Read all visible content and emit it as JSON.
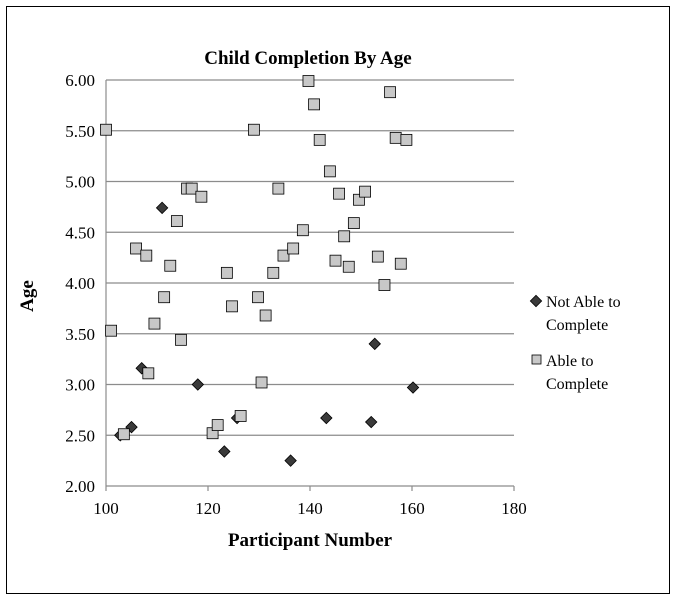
{
  "chart_data": {
    "type": "scatter",
    "title": "Child Completion By Age",
    "xlabel": "Participant Number",
    "ylabel": "Age",
    "xlim": [
      100,
      180
    ],
    "ylim": [
      2.0,
      6.0
    ],
    "xticks": [
      "100",
      "120",
      "140",
      "160",
      "180"
    ],
    "yticks": [
      "2.00",
      "2.50",
      "3.00",
      "3.50",
      "4.00",
      "4.50",
      "5.00",
      "5.50",
      "6.00"
    ],
    "grid": "horizontal",
    "legend_placement": "right",
    "series": [
      {
        "name": "Not Able to Complete",
        "name_lines": [
          "Not Able to",
          "Complete"
        ],
        "marker": "diamond",
        "color": "#3a3a3a",
        "points": [
          [
            102.8,
            2.5
          ],
          [
            105.0,
            2.58
          ],
          [
            107.0,
            3.16
          ],
          [
            111.0,
            4.74
          ],
          [
            118.0,
            3.0
          ],
          [
            123.2,
            2.34
          ],
          [
            125.7,
            2.67
          ],
          [
            136.2,
            2.25
          ],
          [
            143.2,
            2.67
          ],
          [
            152.0,
            2.63
          ],
          [
            152.7,
            3.4
          ],
          [
            160.2,
            2.97
          ]
        ]
      },
      {
        "name": "Able to Complete",
        "name_lines": [
          "Able to",
          "Complete"
        ],
        "marker": "square",
        "color": "#c8c8c8",
        "points": [
          [
            100.0,
            5.51
          ],
          [
            101.0,
            3.53
          ],
          [
            103.5,
            2.51
          ],
          [
            105.9,
            4.34
          ],
          [
            107.9,
            4.27
          ],
          [
            108.3,
            3.11
          ],
          [
            109.5,
            3.6
          ],
          [
            111.4,
            3.86
          ],
          [
            112.6,
            4.17
          ],
          [
            113.9,
            4.61
          ],
          [
            114.7,
            3.44
          ],
          [
            115.9,
            4.93
          ],
          [
            116.8,
            4.93
          ],
          [
            118.7,
            4.85
          ],
          [
            120.9,
            2.52
          ],
          [
            121.9,
            2.6
          ],
          [
            123.7,
            4.1
          ],
          [
            124.7,
            3.77
          ],
          [
            126.4,
            2.69
          ],
          [
            129.0,
            5.51
          ],
          [
            129.8,
            3.86
          ],
          [
            130.5,
            3.02
          ],
          [
            131.3,
            3.68
          ],
          [
            132.8,
            4.1
          ],
          [
            133.8,
            4.93
          ],
          [
            134.8,
            4.27
          ],
          [
            136.7,
            4.34
          ],
          [
            138.6,
            4.52
          ],
          [
            139.7,
            5.99
          ],
          [
            140.8,
            5.76
          ],
          [
            141.9,
            5.41
          ],
          [
            143.9,
            5.1
          ],
          [
            145.0,
            4.22
          ],
          [
            145.7,
            4.88
          ],
          [
            146.7,
            4.46
          ],
          [
            147.6,
            4.16
          ],
          [
            148.6,
            4.59
          ],
          [
            149.6,
            4.82
          ],
          [
            150.8,
            4.9
          ],
          [
            153.3,
            4.26
          ],
          [
            154.6,
            3.98
          ],
          [
            155.7,
            5.88
          ],
          [
            156.8,
            5.43
          ],
          [
            157.8,
            4.19
          ],
          [
            158.9,
            5.41
          ]
        ]
      }
    ]
  }
}
